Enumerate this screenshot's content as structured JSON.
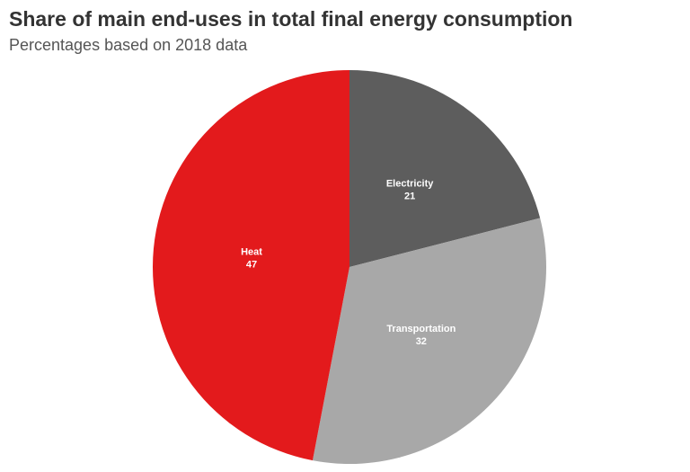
{
  "title": "Share of main end-uses in total final energy consumption",
  "subtitle": "Percentages based on 2018 data",
  "colors": {
    "Electricity": "#5d5d5d",
    "Transportation": "#a8a8a8",
    "Heat": "#e31a1c"
  },
  "chart_data": {
    "type": "pie",
    "title": "Share of main end-uses in total final energy consumption",
    "subtitle": "Percentages based on 2018 data",
    "categories": [
      "Electricity",
      "Transportation",
      "Heat"
    ],
    "values": [
      21,
      32,
      47
    ],
    "start_angle": "12 o'clock",
    "direction": "clockwise",
    "legend": "none"
  }
}
